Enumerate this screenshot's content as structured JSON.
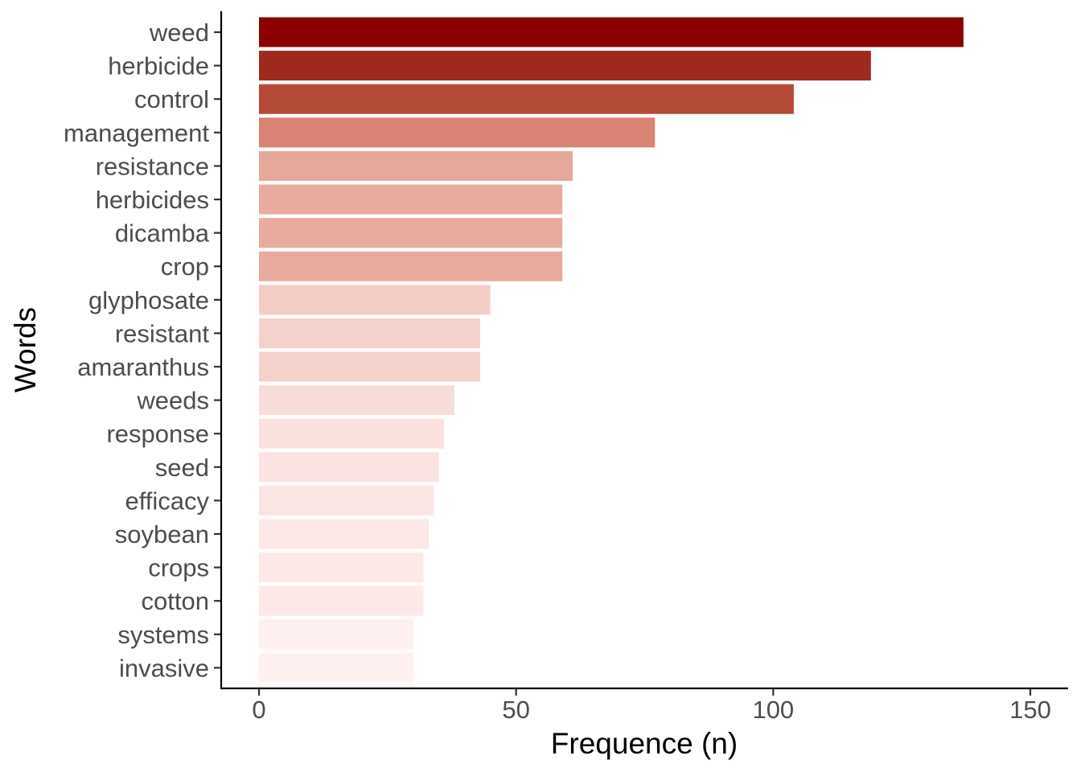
{
  "chart_data": {
    "type": "bar",
    "orientation": "horizontal",
    "categories": [
      "weed",
      "herbicide",
      "control",
      "management",
      "resistance",
      "herbicides",
      "dicamba",
      "crop",
      "glyphosate",
      "resistant",
      "amaranthus",
      "weeds",
      "response",
      "seed",
      "efficacy",
      "soybean",
      "crops",
      "cotton",
      "systems",
      "invasive"
    ],
    "values": [
      137,
      119,
      104,
      77,
      61,
      59,
      59,
      59,
      45,
      43,
      43,
      38,
      36,
      35,
      34,
      33,
      32,
      32,
      30,
      30
    ],
    "colors": [
      "#8b0000",
      "#a0291f",
      "#b44a38",
      "#d88373",
      "#e6a89b",
      "#e8ab9e",
      "#e8ab9e",
      "#e8ab9e",
      "#f4cdc6",
      "#f4d1ca",
      "#f4d1ca",
      "#f8dcd8",
      "#fae1de",
      "#fae3e0",
      "#fbe5e2",
      "#fce8e6",
      "#fce9e7",
      "#fce9e7",
      "#fdf0ef",
      "#fdf0ef"
    ],
    "xlabel": "Frequence (n)",
    "ylabel": "Words",
    "xlim": [
      0,
      150
    ],
    "xticks": [
      0,
      50,
      100,
      150
    ],
    "grid": false,
    "legend": "none"
  }
}
